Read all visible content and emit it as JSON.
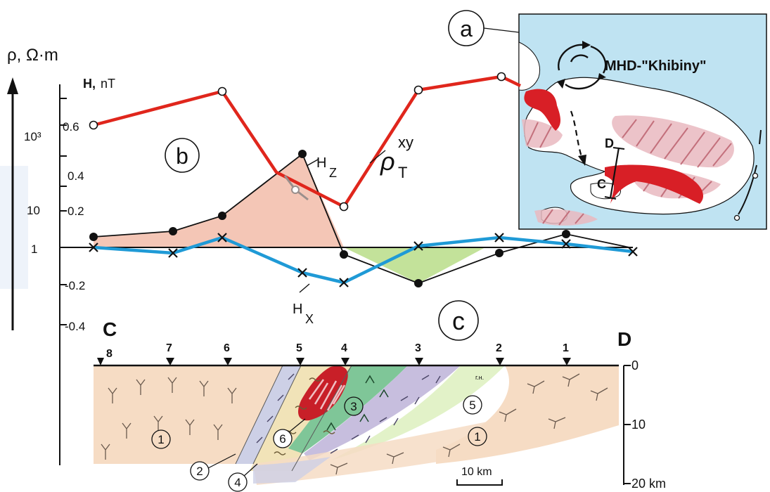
{
  "labels": {
    "rho_axis": "ρ, Ω·m",
    "h_axis_h": "H,",
    "h_axis_unit": "nT",
    "panel_a": "a",
    "panel_b": "b",
    "panel_c": "c",
    "mhd": "MHD-\"Khibiny\"",
    "map_d": "D",
    "map_c": "C",
    "profile_c": "C",
    "profile_d": "D",
    "hz_h": "H",
    "hz_sub": "Z",
    "hx_h": "H",
    "hx_sub": "X",
    "rho_p": "ρ",
    "rho_sub": "T",
    "rho_sup": "xy",
    "scale_bar": "10 km"
  },
  "rho_ticks": [
    "10³",
    "10",
    "1"
  ],
  "h_ticks": [
    "0.6",
    "0.4",
    "0.2",
    "-0.2",
    "-0.4"
  ],
  "depth_ticks": [
    "0",
    "10",
    "20 km"
  ],
  "stations": [
    "8",
    "7",
    "6",
    "5",
    "4",
    "3",
    "2",
    "1"
  ],
  "unit_numbers": [
    "1",
    "2",
    "4",
    "6",
    "3",
    "5",
    "1"
  ],
  "tiny_label": "г.н.",
  "colors": {
    "rho_line": "#e0261c",
    "hx_line": "#1f9ad6",
    "hz_positive_fill": "#f4c6b6",
    "hz_negative_fill": "#c3e29a",
    "map_sea": "#bfe3f2",
    "unit1": "#f6dcc4",
    "unit2": "#cdd0e6",
    "unit4": "#f1e3b8",
    "unit3": "#7fc698",
    "unit_violet": "#c7bede",
    "unit5": "#e2f2c8",
    "intrusion": "#c81f28"
  }
}
